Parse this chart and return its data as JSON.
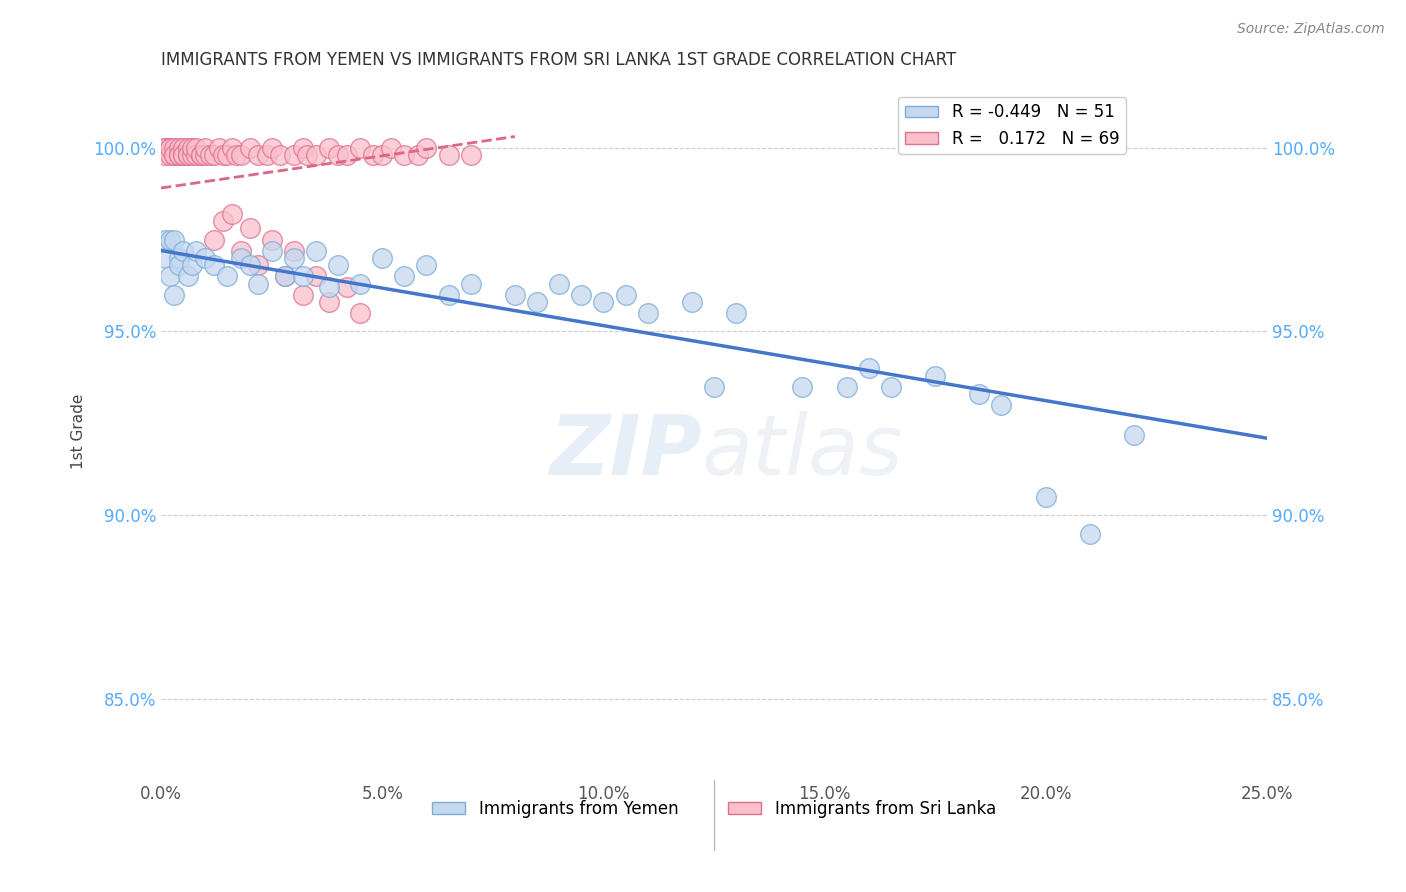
{
  "title": "IMMIGRANTS FROM YEMEN VS IMMIGRANTS FROM SRI LANKA 1ST GRADE CORRELATION CHART",
  "source": "Source: ZipAtlas.com",
  "ylabel": "1st Grade",
  "xlim": [
    0.0,
    0.25
  ],
  "ylim": [
    0.828,
    1.018
  ],
  "yticks": [
    0.85,
    0.9,
    0.95,
    1.0
  ],
  "ytick_labels": [
    "85.0%",
    "90.0%",
    "95.0%",
    "100.0%"
  ],
  "xticks": [
    0.0,
    0.05,
    0.1,
    0.15,
    0.2,
    0.25
  ],
  "xtick_labels": [
    "0.0%",
    "5.0%",
    "10.0%",
    "15.0%",
    "20.0%",
    "25.0%"
  ],
  "watermark": "ZIPAtlas",
  "yemen_color": "#c5d8f0",
  "yemen_edge": "#7badd6",
  "srilanka_color": "#f9c0cc",
  "srilanka_edge": "#e07090",
  "blue_line_color": "#4477cc",
  "pink_line_color": "#dd6688",
  "yemen_R": -0.449,
  "yemen_N": 51,
  "srilanka_R": 0.172,
  "srilanka_N": 69,
  "blue_line_x0": 0.0,
  "blue_line_y0": 0.972,
  "blue_line_x1": 0.25,
  "blue_line_y1": 0.921,
  "pink_line_x0": 0.0,
  "pink_line_y0": 0.989,
  "pink_line_x1": 0.08,
  "pink_line_y1": 1.003,
  "yemen_scatter_x": [
    0.001,
    0.001,
    0.002,
    0.002,
    0.003,
    0.003,
    0.004,
    0.004,
    0.005,
    0.006,
    0.007,
    0.008,
    0.01,
    0.012,
    0.015,
    0.018,
    0.02,
    0.022,
    0.025,
    0.028,
    0.03,
    0.032,
    0.035,
    0.038,
    0.04,
    0.045,
    0.05,
    0.055,
    0.06,
    0.065,
    0.07,
    0.08,
    0.085,
    0.09,
    0.095,
    0.1,
    0.105,
    0.11,
    0.12,
    0.125,
    0.13,
    0.145,
    0.155,
    0.16,
    0.165,
    0.175,
    0.185,
    0.19,
    0.2,
    0.21,
    0.22
  ],
  "yemen_scatter_y": [
    0.975,
    0.97,
    0.975,
    0.965,
    0.975,
    0.96,
    0.97,
    0.968,
    0.972,
    0.965,
    0.968,
    0.972,
    0.97,
    0.968,
    0.965,
    0.97,
    0.968,
    0.963,
    0.972,
    0.965,
    0.97,
    0.965,
    0.972,
    0.962,
    0.968,
    0.963,
    0.97,
    0.965,
    0.968,
    0.96,
    0.963,
    0.96,
    0.958,
    0.963,
    0.96,
    0.958,
    0.96,
    0.955,
    0.958,
    0.935,
    0.955,
    0.935,
    0.935,
    0.94,
    0.935,
    0.938,
    0.933,
    0.93,
    0.905,
    0.895,
    0.922
  ],
  "srilanka_scatter_x": [
    0.001,
    0.001,
    0.001,
    0.002,
    0.002,
    0.002,
    0.003,
    0.003,
    0.003,
    0.004,
    0.004,
    0.004,
    0.005,
    0.005,
    0.005,
    0.006,
    0.006,
    0.006,
    0.007,
    0.007,
    0.008,
    0.008,
    0.009,
    0.009,
    0.01,
    0.01,
    0.011,
    0.012,
    0.013,
    0.014,
    0.015,
    0.016,
    0.017,
    0.018,
    0.02,
    0.022,
    0.024,
    0.025,
    0.027,
    0.03,
    0.032,
    0.033,
    0.035,
    0.038,
    0.04,
    0.042,
    0.045,
    0.048,
    0.05,
    0.052,
    0.055,
    0.058,
    0.06,
    0.065,
    0.07,
    0.012,
    0.014,
    0.016,
    0.018,
    0.02,
    0.022,
    0.025,
    0.028,
    0.03,
    0.032,
    0.035,
    0.038,
    0.042,
    0.045
  ],
  "srilanka_scatter_y": [
    1.0,
    1.0,
    0.998,
    1.0,
    0.998,
    1.0,
    0.998,
    1.0,
    0.998,
    0.998,
    1.0,
    0.998,
    0.998,
    1.0,
    0.998,
    0.998,
    1.0,
    0.998,
    0.998,
    1.0,
    0.998,
    1.0,
    0.998,
    0.998,
    0.998,
    1.0,
    0.998,
    0.998,
    1.0,
    0.998,
    0.998,
    1.0,
    0.998,
    0.998,
    1.0,
    0.998,
    0.998,
    1.0,
    0.998,
    0.998,
    1.0,
    0.998,
    0.998,
    1.0,
    0.998,
    0.998,
    1.0,
    0.998,
    0.998,
    1.0,
    0.998,
    0.998,
    1.0,
    0.998,
    0.998,
    0.975,
    0.98,
    0.982,
    0.972,
    0.978,
    0.968,
    0.975,
    0.965,
    0.972,
    0.96,
    0.965,
    0.958,
    0.962,
    0.955
  ]
}
